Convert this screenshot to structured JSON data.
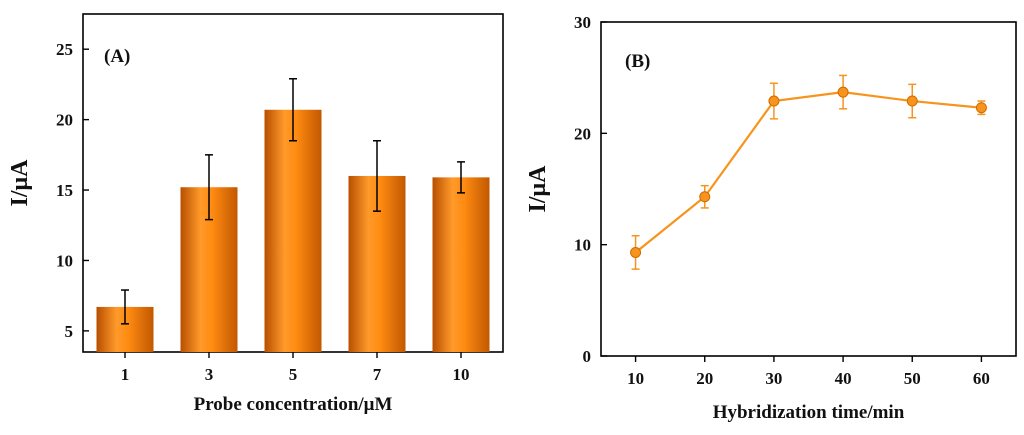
{
  "chart_data": [
    {
      "type": "bar",
      "panel_label": "(A)",
      "categories": [
        "1",
        "3",
        "5",
        "7",
        "10"
      ],
      "values": [
        6.7,
        15.2,
        20.7,
        16.0,
        15.9
      ],
      "errors": [
        1.2,
        2.3,
        2.2,
        2.5,
        1.1
      ],
      "xlabel": "Probe concentration/μM",
      "ylabel": "I/μA",
      "ylim": [
        3.5,
        27.5
      ],
      "yticks": [
        5,
        10,
        15,
        20,
        25
      ],
      "bar_color": "#f07c00"
    },
    {
      "type": "line",
      "panel_label": "(B)",
      "x": [
        10,
        20,
        30,
        40,
        50,
        60
      ],
      "y": [
        9.3,
        14.3,
        22.9,
        23.7,
        22.9,
        22.3
      ],
      "errors": [
        1.5,
        1.0,
        1.6,
        1.5,
        1.5,
        0.6
      ],
      "xlabel": "Hybridization time/min",
      "ylabel": "I/μA",
      "xlim": [
        5,
        65
      ],
      "ylim": [
        0,
        30
      ],
      "xticks": [
        10,
        20,
        30,
        40,
        50,
        60
      ],
      "yticks": [
        0,
        10,
        20,
        30
      ],
      "line_color": "#f7941d"
    }
  ]
}
